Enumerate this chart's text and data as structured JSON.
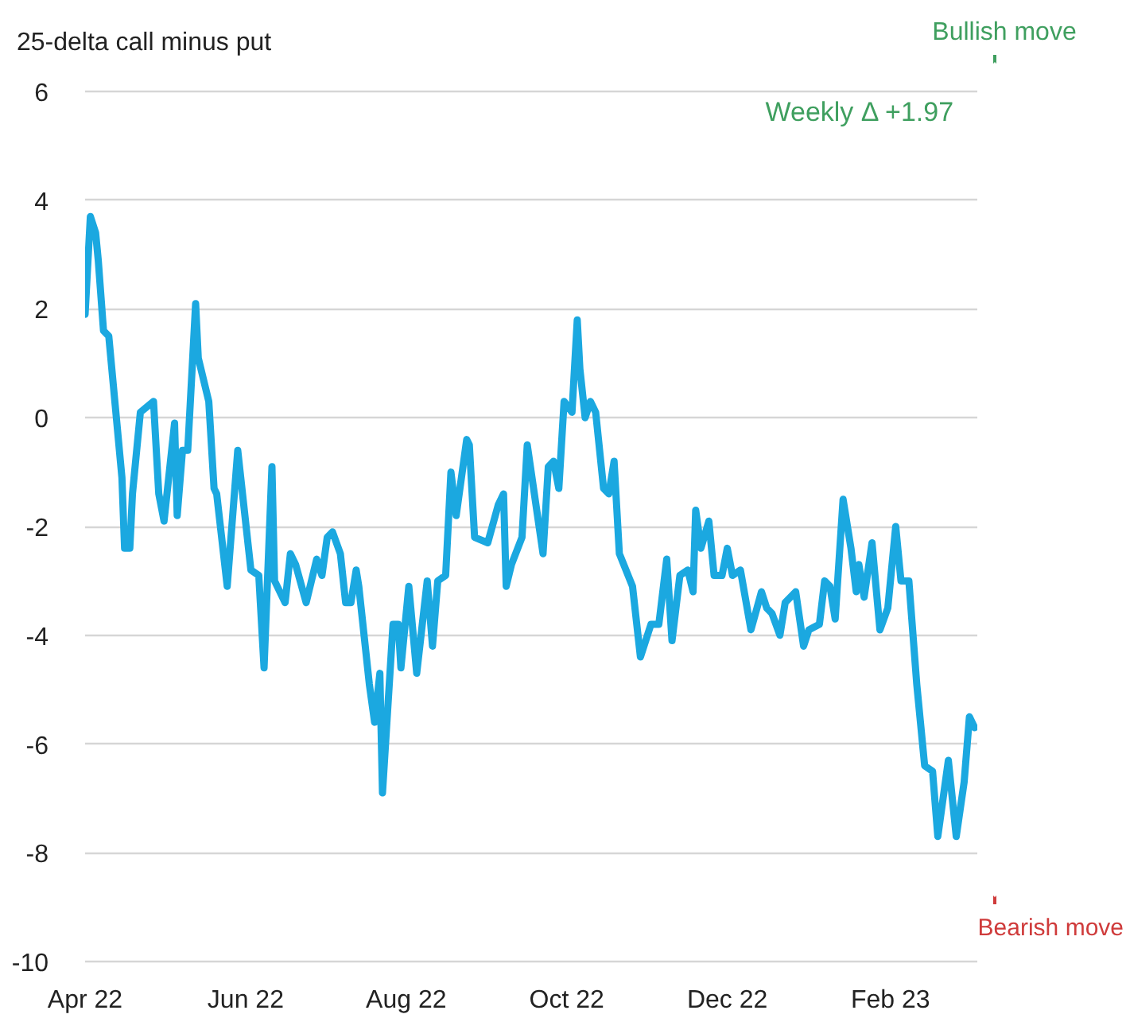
{
  "chart_data": {
    "type": "line",
    "ylabel": "25-delta call minus put",
    "annotations": [
      "Weekly Δ +1.97",
      "Bullish move",
      "Bearish move"
    ],
    "x": [
      "2022-04-01",
      "2022-04-03",
      "2022-04-05",
      "2022-04-06",
      "2022-04-08",
      "2022-04-10",
      "2022-04-15",
      "2022-04-16",
      "2022-04-18",
      "2022-04-19",
      "2022-04-22",
      "2022-04-27",
      "2022-04-29",
      "2022-05-01",
      "2022-05-05",
      "2022-05-06",
      "2022-05-08",
      "2022-05-10",
      "2022-05-13",
      "2022-05-14",
      "2022-05-18",
      "2022-05-20",
      "2022-05-21",
      "2022-05-25",
      "2022-05-29",
      "2022-06-03",
      "2022-06-06",
      "2022-06-08",
      "2022-06-11",
      "2022-06-12",
      "2022-06-16",
      "2022-06-18",
      "2022-06-20",
      "2022-06-24",
      "2022-06-28",
      "2022-06-30",
      "2022-07-02",
      "2022-07-04",
      "2022-07-07",
      "2022-07-09",
      "2022-07-11",
      "2022-07-13",
      "2022-07-14",
      "2022-07-18",
      "2022-07-20",
      "2022-07-22",
      "2022-07-23",
      "2022-07-27",
      "2022-07-29",
      "2022-07-30",
      "2022-08-02",
      "2022-08-05",
      "2022-08-09",
      "2022-08-11",
      "2022-08-13",
      "2022-08-16",
      "2022-08-18",
      "2022-08-20",
      "2022-08-24",
      "2022-08-25",
      "2022-08-27",
      "2022-09-01",
      "2022-09-05",
      "2022-09-07",
      "2022-09-08",
      "2022-09-10",
      "2022-09-14",
      "2022-09-16",
      "2022-09-22",
      "2022-09-24",
      "2022-09-26",
      "2022-09-28",
      "2022-09-30",
      "2022-10-03",
      "2022-10-05",
      "2022-10-06",
      "2022-10-08",
      "2022-10-10",
      "2022-10-12",
      "2022-10-15",
      "2022-10-17",
      "2022-10-19",
      "2022-10-21",
      "2022-10-26",
      "2022-10-29",
      "2022-11-02",
      "2022-11-05",
      "2022-11-07",
      "2022-11-08",
      "2022-11-10",
      "2022-11-13",
      "2022-11-16",
      "2022-11-18",
      "2022-11-19",
      "2022-11-21",
      "2022-11-24",
      "2022-11-26",
      "2022-11-29",
      "2022-12-01",
      "2022-12-03",
      "2022-12-06",
      "2022-12-10",
      "2022-12-14",
      "2022-12-16",
      "2022-12-18",
      "2022-12-21",
      "2022-12-23",
      "2022-12-27",
      "2022-12-30",
      "2023-01-01",
      "2023-01-05",
      "2023-01-07",
      "2023-01-09",
      "2023-01-11",
      "2023-01-14",
      "2023-01-17",
      "2023-01-19",
      "2023-01-20",
      "2023-01-22",
      "2023-01-25",
      "2023-01-28",
      "2023-01-31",
      "2023-02-03",
      "2023-02-05",
      "2023-02-08",
      "2023-02-11",
      "2023-02-14",
      "2023-02-17",
      "2023-02-19",
      "2023-02-23",
      "2023-02-26",
      "2023-03-01",
      "2023-03-03",
      "2023-03-05"
    ],
    "series": [
      {
        "color": "#1ba8e0",
        "values": [
          1.9,
          3.7,
          3.4,
          2.9,
          1.6,
          1.5,
          -1.1,
          -2.4,
          -2.4,
          -1.4,
          0.1,
          0.3,
          -1.4,
          -1.9,
          -0.1,
          -1.8,
          -0.6,
          -0.6,
          2.1,
          1.1,
          0.3,
          -1.3,
          -1.4,
          -3.1,
          -0.6,
          -2.8,
          -2.9,
          -4.6,
          -0.9,
          -3.0,
          -3.4,
          -2.5,
          -2.7,
          -3.4,
          -2.6,
          -2.9,
          -2.2,
          -2.1,
          -2.5,
          -3.4,
          -3.4,
          -2.8,
          -3.1,
          -4.9,
          -5.6,
          -4.7,
          -6.9,
          -3.8,
          -3.8,
          -4.6,
          -3.1,
          -4.7,
          -3.0,
          -4.2,
          -3.0,
          -2.9,
          -1.0,
          -1.8,
          -0.4,
          -0.5,
          -2.2,
          -2.3,
          -1.6,
          -1.4,
          -3.1,
          -2.7,
          -2.2,
          -0.5,
          -2.5,
          -0.9,
          -0.8,
          -1.3,
          0.3,
          0.1,
          1.8,
          0.9,
          0.0,
          0.3,
          0.1,
          -1.3,
          -1.4,
          -0.8,
          -2.5,
          -3.1,
          -4.4,
          -3.8,
          -3.8,
          -3.0,
          -2.6,
          -4.1,
          -2.9,
          -2.8,
          -3.2,
          -1.7,
          -2.4,
          -1.9,
          -2.9,
          -2.9,
          -2.4,
          -2.9,
          -2.8,
          -3.9,
          -3.2,
          -3.5,
          -3.6,
          -4.0,
          -3.4,
          -3.2,
          -4.2,
          -3.9,
          -3.8,
          -3.0,
          -3.1,
          -3.7,
          -1.5,
          -2.4,
          -3.2,
          -2.7,
          -3.3,
          -2.3,
          -3.9,
          -3.5,
          -2.0,
          -3.0,
          -3.0,
          -4.9,
          -6.4,
          -6.5,
          -7.7,
          -6.3,
          -7.7,
          -6.7,
          -5.5,
          -5.7
        ]
      }
    ],
    "xlim": [
      "2022-04-01",
      "2023-03-06"
    ],
    "ylim": [
      -10,
      6
    ],
    "xticks": [
      {
        "value": "2022-04-01",
        "label": "Apr 22"
      },
      {
        "value": "2022-06-01",
        "label": "Jun 22"
      },
      {
        "value": "2022-08-01",
        "label": "Aug 22"
      },
      {
        "value": "2022-10-01",
        "label": "Oct 22"
      },
      {
        "value": "2022-12-01",
        "label": "Dec 22"
      },
      {
        "value": "2023-02-01",
        "label": "Feb 23"
      }
    ],
    "yticks": [
      -10,
      -8,
      -6,
      -4,
      -2,
      0,
      2,
      4,
      6
    ],
    "grid": "y"
  }
}
